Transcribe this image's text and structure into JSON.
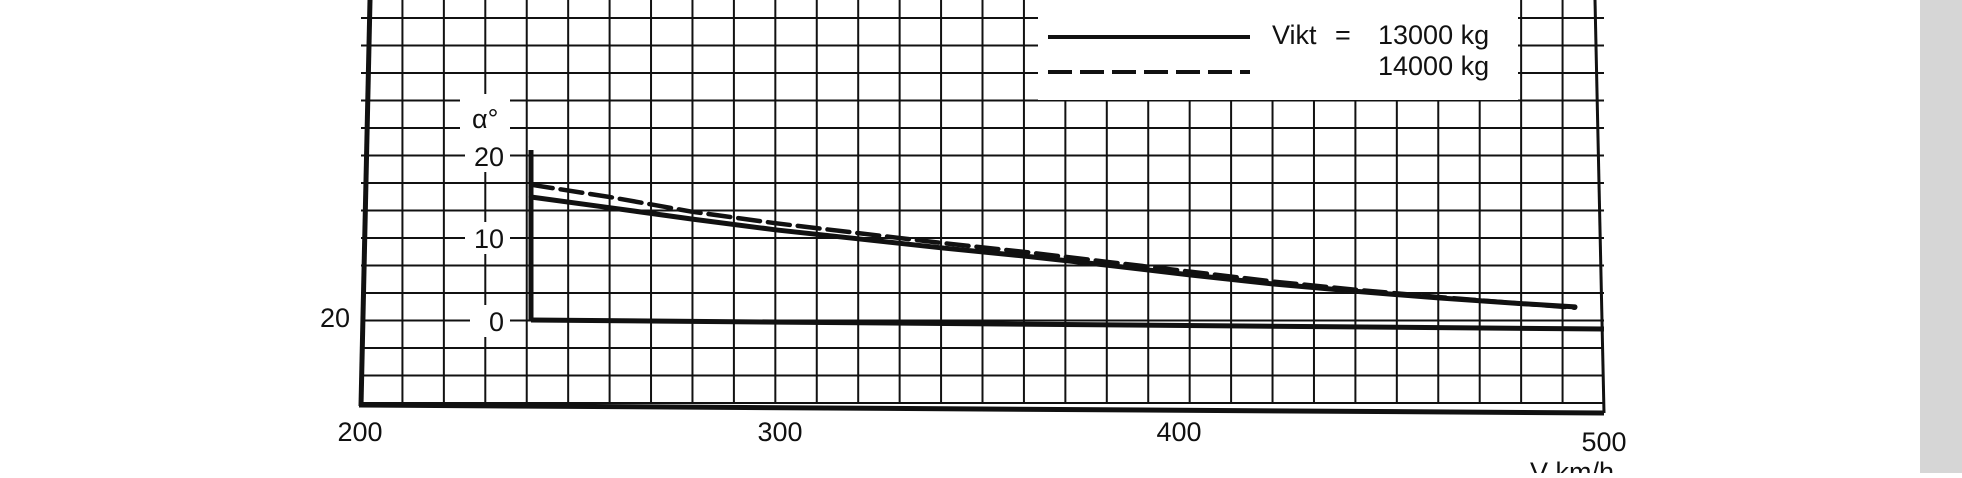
{
  "chart_data": {
    "type": "line",
    "title": "",
    "xlabel": "V km/h",
    "ylabel": "α°",
    "xlim": [
      200,
      500
    ],
    "ylim": [
      0,
      20
    ],
    "x_ticks": [
      "200",
      "300",
      "400",
      "500"
    ],
    "y_ticks": [
      "0",
      "10",
      "20"
    ],
    "outer_y_tick": "20",
    "grid": true,
    "legend": {
      "position": "top-right",
      "prefix": "Vikt",
      "equals": "=",
      "entries": [
        "13000 kg",
        "14000 kg"
      ]
    },
    "series": [
      {
        "name": "13000 kg",
        "style": "solid",
        "x": [
          241,
          260,
          280,
          300,
          320,
          340,
          360,
          380,
          400,
          420,
          440,
          460,
          480,
          493
        ],
        "y": [
          15,
          13.7,
          12.3,
          11,
          9.9,
          8.8,
          7.8,
          6.7,
          5.5,
          4.4,
          3.5,
          2.7,
          2.0,
          1.6
        ]
      },
      {
        "name": "14000 kg",
        "style": "dashed",
        "x": [
          241,
          260,
          280,
          300,
          320,
          340,
          360,
          380,
          400,
          420,
          440,
          460,
          480,
          493
        ],
        "y": [
          16.5,
          15,
          13.2,
          11.8,
          10.6,
          9.4,
          8.3,
          7.1,
          5.9,
          4.7,
          3.7,
          2.8,
          2.0,
          1.5
        ]
      }
    ]
  },
  "colors": {
    "ink": "#111111",
    "background": "#ffffff",
    "scrollbar": "#d6d6d6"
  }
}
